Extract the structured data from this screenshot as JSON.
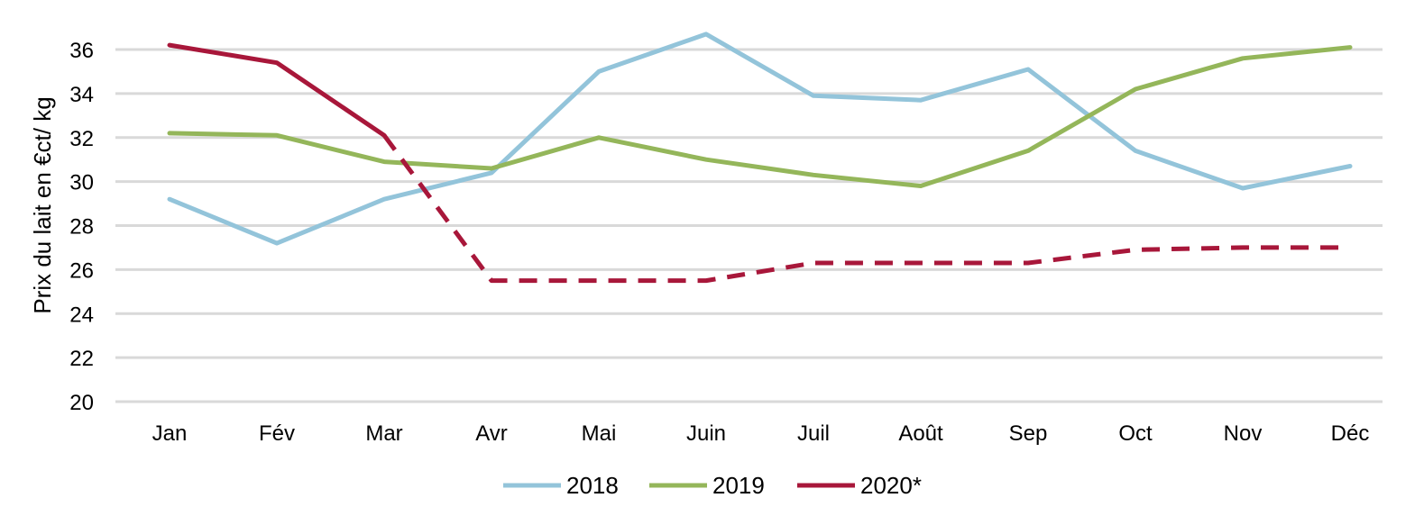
{
  "chart_data": {
    "type": "line",
    "title": "",
    "xlabel": "",
    "ylabel": "Prix du lait en €ct/ kg",
    "categories": [
      "Jan",
      "Fév",
      "Mar",
      "Avr",
      "Mai",
      "Juin",
      "Juil",
      "Août",
      "Sep",
      "Oct",
      "Nov",
      "Déc"
    ],
    "ylim": [
      20,
      36
    ],
    "yticks": [
      "20",
      "22",
      "24",
      "26",
      "28",
      "30",
      "32",
      "34",
      "36"
    ],
    "grid": true,
    "legend_position": "bottom",
    "series": [
      {
        "name": "2018",
        "color": "#93c4da",
        "values": [
          29.2,
          27.2,
          29.2,
          30.4,
          35.0,
          36.7,
          33.9,
          33.7,
          35.1,
          31.4,
          29.7,
          30.7
        ]
      },
      {
        "name": "2019",
        "color": "#94b65a",
        "values": [
          32.2,
          32.1,
          30.9,
          30.6,
          32.0,
          31.0,
          30.3,
          29.8,
          31.4,
          34.2,
          35.6,
          36.1
        ]
      },
      {
        "name": "2020*",
        "color": "#a8173a",
        "values": [
          36.2,
          35.4,
          32.1,
          25.5,
          25.5,
          25.5,
          26.3,
          26.3,
          26.3,
          26.9,
          27.0,
          27.0
        ],
        "solid_until_index": 2,
        "dashed_from_index": 2
      }
    ]
  }
}
